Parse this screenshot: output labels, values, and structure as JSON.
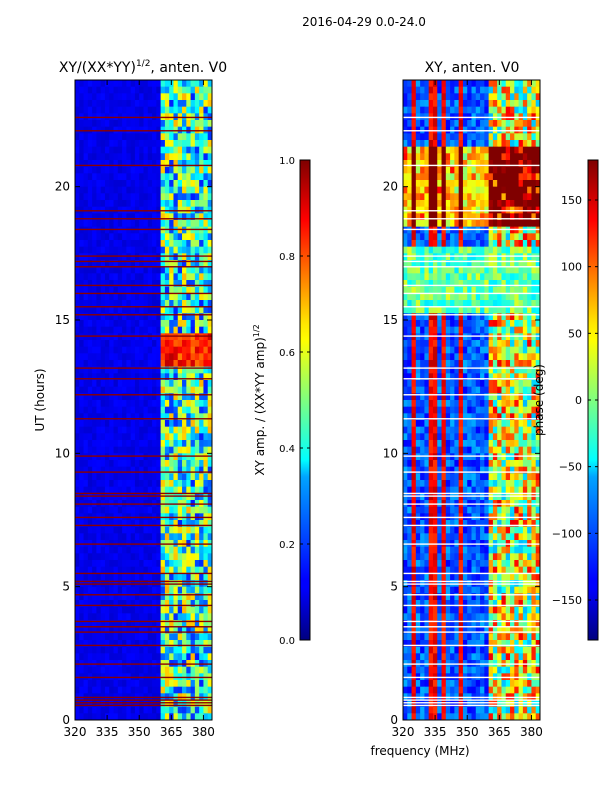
{
  "figure_title": "2016-04-29 0.0-24.0",
  "shared_xlabel": "frequency (MHz)",
  "chart_data": [
    {
      "type": "heatmap",
      "title": "XY/(XX*YY)",
      "title_exponent": "1/2",
      "title_suffix": ", anten. V0",
      "xlabel": "",
      "ylabel": "UT (hours)",
      "xlim": [
        320,
        384
      ],
      "ylim": [
        0,
        24
      ],
      "xticks": [
        320,
        335,
        350,
        365,
        380
      ],
      "yticks": [
        0,
        5,
        10,
        15,
        20
      ],
      "colormap": "jet",
      "colorbar": {
        "label": "XY amp. / (XX*YY amp)",
        "label_exponent": "1/2",
        "range": [
          0.0,
          1.0
        ],
        "ticks": [
          0.0,
          0.2,
          0.4,
          0.6,
          0.8,
          1.0
        ],
        "tick_labels": [
          "0.0",
          "0.2",
          "0.4",
          "0.6",
          "0.8",
          "1.0"
        ]
      },
      "background_value": 0.08,
      "high_band_mhz": [
        360,
        383
      ],
      "flagged_hours": [
        0.55,
        0.65,
        0.75,
        0.85,
        1.6,
        2.1,
        2.8,
        3.3,
        3.5,
        3.7,
        4.3,
        4.7,
        5.1,
        5.2,
        5.5,
        6.6,
        7.3,
        7.6,
        8.1,
        8.4,
        8.5,
        9.3,
        9.9,
        11.3,
        12.2,
        12.8,
        13.2,
        14.4,
        15.2,
        15.5,
        16.0,
        16.3,
        17.0,
        17.2,
        17.4,
        18.4,
        18.8,
        19.1,
        20.8,
        22.1,
        22.6
      ]
    },
    {
      "type": "heatmap",
      "title": "XY, anten. V0",
      "xlabel": "frequency (MHz)",
      "ylabel": "",
      "xlim": [
        320,
        384
      ],
      "ylim": [
        0,
        24
      ],
      "xticks": [
        320,
        335,
        350,
        365,
        380
      ],
      "yticks": [
        0,
        5,
        10,
        15,
        20
      ],
      "colormap": "jet",
      "colorbar": {
        "label": "phase (deg)",
        "range": [
          -180,
          180
        ],
        "ticks": [
          -150,
          -100,
          -50,
          0,
          50,
          100,
          150
        ],
        "tick_labels": [
          "−150",
          "−100",
          "−50",
          "0",
          "50",
          "100",
          "150"
        ]
      },
      "stripe_features_mhz": [
        325,
        334,
        339,
        347
      ],
      "high_band_mhz": [
        360,
        383
      ],
      "flagged_hours": [
        0.55,
        0.65,
        0.75,
        0.85,
        1.6,
        2.1,
        2.8,
        3.3,
        3.5,
        3.7,
        4.3,
        4.7,
        5.1,
        5.2,
        5.5,
        6.6,
        7.3,
        7.6,
        8.1,
        8.4,
        8.5,
        9.3,
        9.9,
        11.3,
        12.2,
        12.8,
        13.2,
        14.4,
        15.2,
        15.5,
        16.0,
        16.3,
        17.0,
        17.2,
        17.4,
        18.4,
        18.8,
        19.1,
        20.8,
        22.1,
        22.6
      ]
    }
  ]
}
